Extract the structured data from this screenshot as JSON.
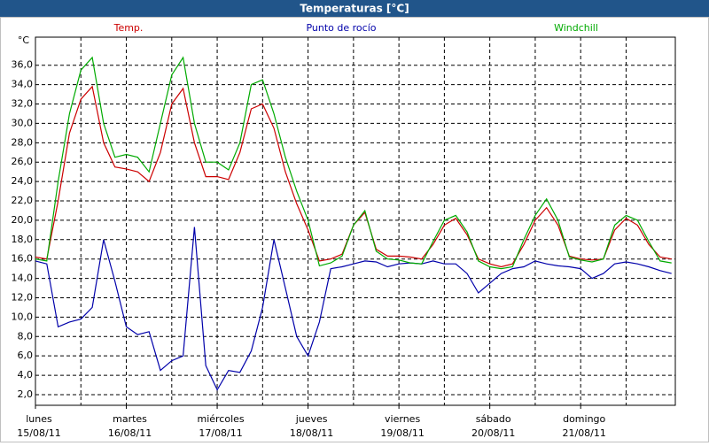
{
  "chart_data": {
    "type": "line",
    "title": "Temperaturas [°C]",
    "y_unit": "°C",
    "x": [
      0,
      3,
      6,
      9,
      12,
      15,
      18,
      21,
      24,
      27,
      30,
      33,
      36,
      39,
      42,
      45,
      48,
      51,
      54,
      57,
      60,
      63,
      66,
      69,
      72,
      75,
      78,
      81,
      84,
      87,
      90,
      93,
      96,
      99,
      102,
      105,
      108,
      111,
      114,
      117,
      120,
      123,
      126,
      129,
      132,
      135,
      138,
      141,
      144,
      147,
      150,
      153,
      156,
      159,
      162,
      165,
      168
    ],
    "series": [
      {
        "name": "Temp.",
        "color": "#cc0000",
        "values": [
          16.2,
          16.0,
          22,
          29,
          32.5,
          33.8,
          28,
          25.5,
          25.3,
          25,
          24,
          27,
          32,
          33.6,
          28,
          24.5,
          24.5,
          24.2,
          27,
          31.5,
          32,
          29.5,
          25,
          21.7,
          19,
          15.8,
          16,
          16.5,
          19.5,
          20.8,
          17,
          16.3,
          16.3,
          16.2,
          16,
          17.5,
          19.5,
          20.2,
          18.5,
          16,
          15.5,
          15.2,
          15.5,
          17.5,
          20,
          21.3,
          19.5,
          16.3,
          16,
          15.9,
          16,
          19,
          20.2,
          19.5,
          17.5,
          16.2,
          16
        ]
      },
      {
        "name": "Punto de rocío",
        "color": "#0000aa",
        "values": [
          15.8,
          15.5,
          9,
          9.5,
          9.8,
          11,
          18,
          13.7,
          9,
          8.2,
          8.5,
          4.5,
          5.5,
          6,
          19.3,
          5,
          2.5,
          4.5,
          4.3,
          6.5,
          11,
          18,
          13,
          8,
          6,
          9.5,
          15,
          15.2,
          15.5,
          15.8,
          15.7,
          15.2,
          15.5,
          15.6,
          15.5,
          15.8,
          15.5,
          15.5,
          14.5,
          12.5,
          13.5,
          14.5,
          15,
          15.2,
          15.8,
          15.5,
          15.3,
          15.2,
          15,
          14,
          14.5,
          15.5,
          15.7,
          15.5,
          15.2,
          14.8,
          14.5
        ]
      },
      {
        "name": "Windchill",
        "color": "#00aa00",
        "values": [
          16,
          15.8,
          24,
          31,
          35.5,
          36.8,
          30,
          26.5,
          26.8,
          26.5,
          25,
          30,
          35,
          36.8,
          30,
          26,
          26,
          25.2,
          28,
          34,
          34.5,
          31,
          26.5,
          23,
          20,
          15.3,
          15.6,
          16.3,
          19.5,
          21,
          16.8,
          16,
          15.9,
          15.6,
          15.5,
          17.8,
          20,
          20.5,
          18.8,
          15.8,
          15.2,
          15,
          15.2,
          18,
          20.5,
          22.2,
          20,
          16.2,
          15.9,
          15.7,
          16,
          19.5,
          20.5,
          20,
          17.8,
          15.8,
          15.6
        ]
      }
    ],
    "xlim": [
      0,
      169
    ],
    "xticks": [
      {
        "value": 0,
        "label": "lunes"
      },
      {
        "value": 24,
        "label": "martes"
      },
      {
        "value": 48,
        "label": "miércoles"
      },
      {
        "value": 72,
        "label": "jueves"
      },
      {
        "value": 96,
        "label": "viernes"
      },
      {
        "value": 120,
        "label": "sábado"
      },
      {
        "value": 144,
        "label": "domingo"
      }
    ],
    "xtick_dates": [
      "15/08/11",
      "16/08/11",
      "17/08/11",
      "18/08/11",
      "19/08/11",
      "20/08/11",
      "21/08/11"
    ],
    "xgrid": [
      12,
      24,
      36,
      48,
      60,
      72,
      84,
      96,
      108,
      120,
      132,
      144,
      156
    ],
    "ylim": [
      0.9,
      38.9
    ],
    "yticks": [
      {
        "value": 2,
        "label": "2,0"
      },
      {
        "value": 4,
        "label": "4,0"
      },
      {
        "value": 6,
        "label": "6,0"
      },
      {
        "value": 8,
        "label": "8,0"
      },
      {
        "value": 10,
        "label": "10,0"
      },
      {
        "value": 12,
        "label": "12,0"
      },
      {
        "value": 14,
        "label": "14,0"
      },
      {
        "value": 16,
        "label": "16,0"
      },
      {
        "value": 18,
        "label": "18,0"
      },
      {
        "value": 20,
        "label": "20,0"
      },
      {
        "value": 22,
        "label": "22,0"
      },
      {
        "value": 24,
        "label": "24,0"
      },
      {
        "value": 26,
        "label": "26,0"
      },
      {
        "value": 28,
        "label": "28,0"
      },
      {
        "value": 30,
        "label": "30,0"
      },
      {
        "value": 32,
        "label": "32,0"
      },
      {
        "value": 34,
        "label": "34,0"
      },
      {
        "value": 36,
        "label": "36,0"
      }
    ],
    "grid": true
  }
}
